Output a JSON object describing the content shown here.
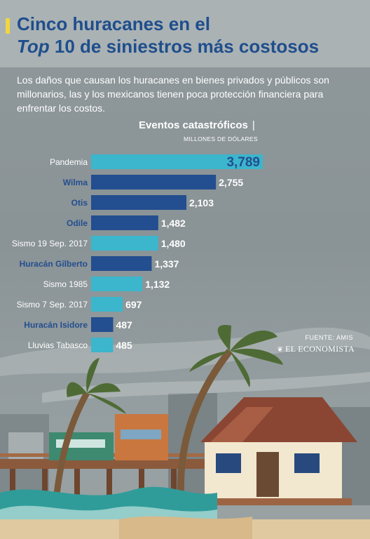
{
  "header": {
    "title_line1": "Cinco huracanes en el",
    "title_line2_italic": "Top",
    "title_line2_rest": " 10 de siniestros más costosos",
    "subtitle": "Los daños que causan los huracanes en bienes privados y públicos son millonarios, las y los mexicanos tienen poca protección financiera para enfrentar los costos."
  },
  "chart_data": {
    "type": "bar",
    "orientation": "horizontal",
    "title": "Eventos catastróficos",
    "unit": "MILLONES DE DÓLARES",
    "categories": [
      "Pandemia",
      "Wilma",
      "Otis",
      "Odile",
      "Sismo 19 Sep. 2017",
      "Huracán Gilberto",
      "Sismo 1985",
      "Sismo 7 Sep. 2017",
      "Huracán Isidore",
      "Lluvias Tabasco"
    ],
    "values": [
      3789,
      2755,
      2103,
      1482,
      1480,
      1337,
      1132,
      697,
      487,
      485
    ],
    "value_labels": [
      "3,789",
      "2,755",
      "2,103",
      "1,482",
      "1,480",
      "1,337",
      "1,132",
      "697",
      "487",
      "485"
    ],
    "is_hurricane": [
      false,
      true,
      true,
      true,
      false,
      true,
      false,
      false,
      true,
      false
    ],
    "xlim": [
      0,
      3789
    ],
    "colors": {
      "hurricane": "#234e8f",
      "other": "#3bb6cc",
      "highlight_label": "#234e8f"
    },
    "grid": false
  },
  "footer": {
    "source": "FUENTE: AMIS",
    "brand": "EL ECONOMISTA",
    "brand_icon": "newspaper-mark-icon"
  },
  "colors": {
    "title": "#1f4e8c",
    "accent": "#f0d640",
    "background": "#8e979a"
  }
}
